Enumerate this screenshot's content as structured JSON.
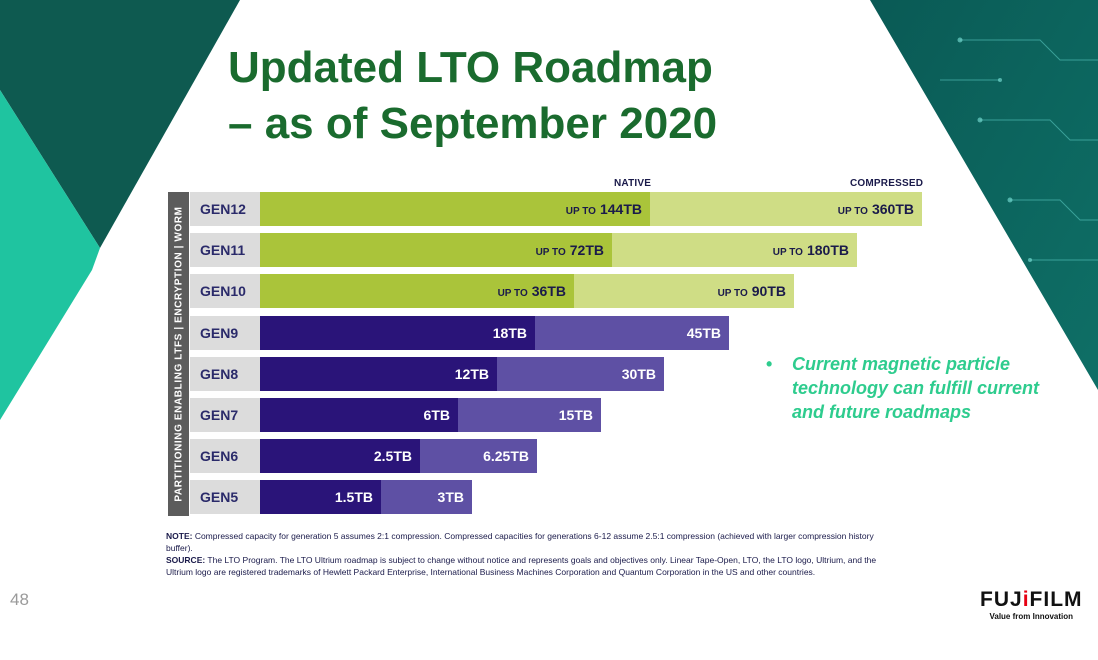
{
  "slide": {
    "title_line1": "Updated LTO Roadmap",
    "title_line2": "– as of September 2020",
    "page_number": "48",
    "colors": {
      "title": "#1a6b2e",
      "bullet": "#2ecc8e",
      "native_new": "#aac43a",
      "compressed_new": "#cfdd85",
      "native_old": "#2a1479",
      "compressed_old": "#5e50a4"
    }
  },
  "chart_data": {
    "type": "bar",
    "orientation": "horizontal",
    "stacked": true,
    "header_native": "NATIVE",
    "header_compressed": "COMPRESSED",
    "side_label": "PARTITIONING ENABLING LTFS | ENCRYPTION | WORM",
    "unit": "TB",
    "categories": [
      "GEN12",
      "GEN11",
      "GEN10",
      "GEN9",
      "GEN8",
      "GEN7",
      "GEN6",
      "GEN5"
    ],
    "series": [
      {
        "name": "NATIVE",
        "values": [
          144,
          72,
          36,
          18,
          12,
          6,
          2.5,
          1.5
        ]
      },
      {
        "name": "COMPRESSED",
        "values": [
          360,
          180,
          90,
          45,
          30,
          15,
          6.25,
          3
        ]
      }
    ],
    "rows": [
      {
        "gen": "GEN12",
        "native_label": "144TB",
        "compressed_label": "360TB",
        "prefix": "UP TO",
        "future": true
      },
      {
        "gen": "GEN11",
        "native_label": "72TB",
        "compressed_label": "180TB",
        "prefix": "UP TO",
        "future": true
      },
      {
        "gen": "GEN10",
        "native_label": "36TB",
        "compressed_label": "90TB",
        "prefix": "UP TO",
        "future": true
      },
      {
        "gen": "GEN9",
        "native_label": "18TB",
        "compressed_label": "45TB",
        "prefix": "",
        "future": false
      },
      {
        "gen": "GEN8",
        "native_label": "12TB",
        "compressed_label": "30TB",
        "prefix": "",
        "future": false
      },
      {
        "gen": "GEN7",
        "native_label": "6TB",
        "compressed_label": "15TB",
        "prefix": "",
        "future": false
      },
      {
        "gen": "GEN6",
        "native_label": "2.5TB",
        "compressed_label": "6.25TB",
        "prefix": "",
        "future": false
      },
      {
        "gen": "GEN5",
        "native_label": "1.5TB",
        "compressed_label": "3TB",
        "prefix": "",
        "future": false
      }
    ]
  },
  "bullet": {
    "marker": "•",
    "text": "Current magnetic particle technology can fulfill current and future roadmaps"
  },
  "notes": {
    "note_label": "NOTE:",
    "note_text": " Compressed capacity for generation 5 assumes 2:1 compression. Compressed capacities for generations 6-12 assume 2.5:1 compression (achieved with larger compression history buffer).",
    "source_label": "SOURCE:",
    "source_text": " The LTO Program. The LTO Ultrium roadmap is subject to change without notice and represents goals and objectives only. Linear Tape-Open, LTO, the LTO logo, Ultrium, and the Ultrium logo are registered trademarks of Hewlett Packard Enterprise, International Business Machines Corporation and Quantum Corporation in the US and other countries."
  },
  "logo": {
    "word_part1": "FUJ",
    "word_part2": "i",
    "word_part3": "FILM",
    "tagline": "Value from Innovation"
  }
}
